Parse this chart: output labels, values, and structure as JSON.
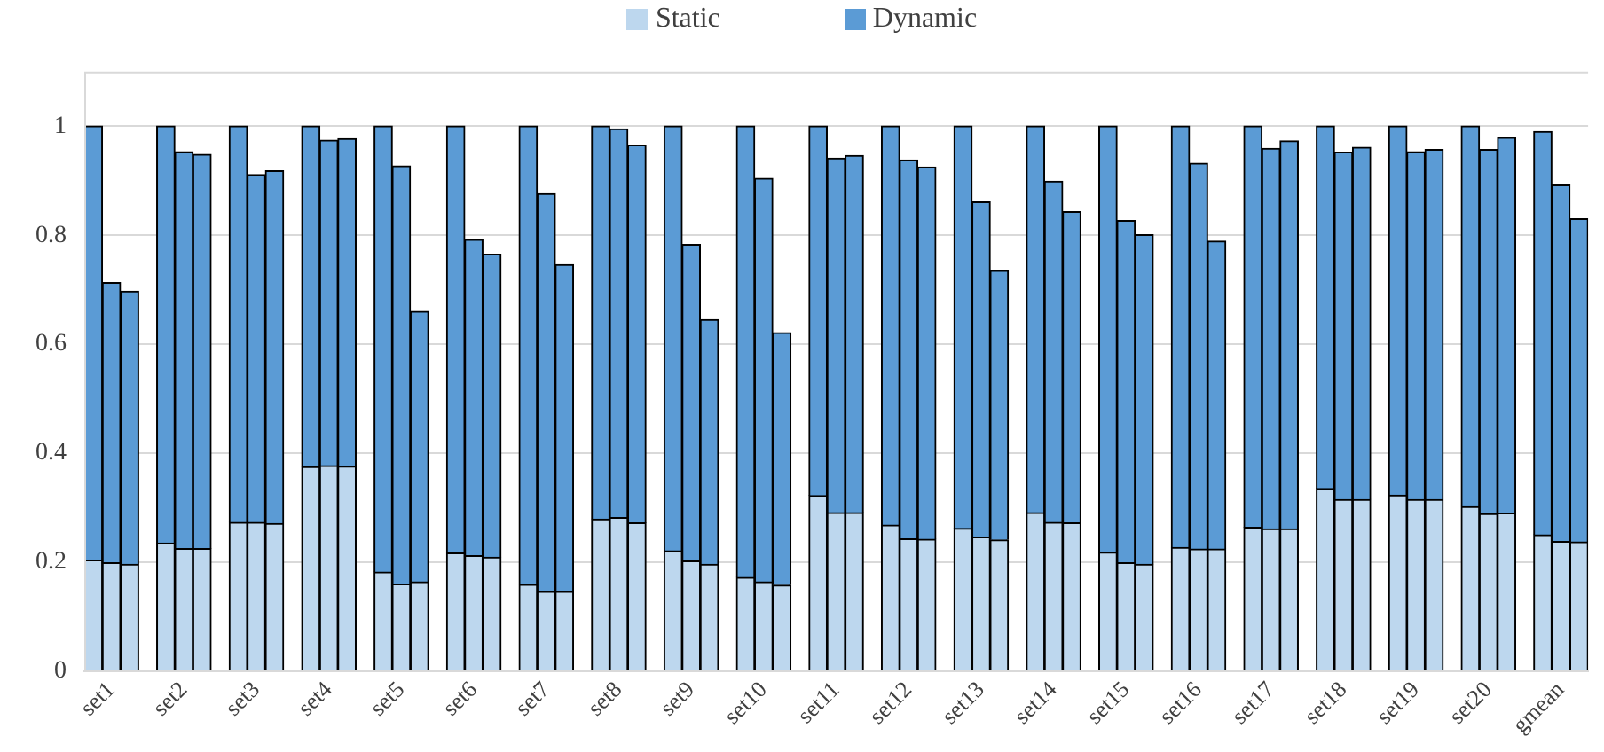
{
  "chart_data": {
    "type": "bar",
    "stacked": true,
    "legend": "top",
    "grid": "y",
    "ylim": [
      0,
      1.1
    ],
    "yticks": [
      0,
      0.2,
      0.4,
      0.6,
      0.8,
      1
    ],
    "categories": [
      null,
      "set1",
      null,
      null,
      null,
      "set2",
      null,
      null,
      null,
      "set3",
      null,
      null,
      null,
      "set4",
      null,
      null,
      null,
      "set5",
      null,
      null,
      null,
      "set6",
      null,
      null,
      null,
      "set7",
      null,
      null,
      null,
      "set8",
      null,
      null,
      null,
      "set9",
      null,
      null,
      null,
      "set10",
      null,
      null,
      null,
      "set11",
      null,
      null,
      null,
      "set12",
      null,
      null,
      null,
      "set13",
      null,
      null,
      null,
      "set14",
      null,
      null,
      null,
      "set15",
      null,
      null,
      null,
      "set16",
      null,
      null,
      null,
      "set17",
      null,
      null,
      null,
      "set18",
      null,
      null,
      null,
      "set19",
      null,
      null,
      null,
      "set20",
      null,
      null,
      null,
      "gmean",
      null
    ],
    "series": [
      {
        "name": "Static",
        "color": "#bdd7ee",
        "values": [
          0.204,
          0.199,
          0.196,
          null,
          0.235,
          0.225,
          0.225,
          null,
          0.273,
          0.273,
          0.271,
          null,
          0.375,
          0.377,
          0.376,
          null,
          0.182,
          0.16,
          0.164,
          null,
          0.217,
          0.212,
          0.209,
          null,
          0.159,
          0.146,
          0.146,
          null,
          0.279,
          0.282,
          0.272,
          null,
          0.221,
          0.202,
          0.196,
          null,
          0.172,
          0.164,
          0.158,
          null,
          0.322,
          0.291,
          0.291,
          null,
          0.268,
          0.243,
          0.242,
          null,
          0.262,
          0.246,
          0.241,
          null,
          0.291,
          0.273,
          0.272,
          null,
          0.218,
          0.199,
          0.196,
          null,
          0.227,
          0.224,
          0.224,
          null,
          0.264,
          0.261,
          0.261,
          null,
          0.335,
          0.315,
          0.315,
          null,
          0.323,
          0.315,
          0.315,
          null,
          0.302,
          0.289,
          0.29,
          null,
          0.25,
          0.238,
          0.237
        ]
      },
      {
        "name": "Dynamic",
        "color": "#5b9bd5",
        "values": [
          0.796,
          0.514,
          0.501,
          null,
          0.765,
          0.728,
          0.723,
          null,
          0.727,
          0.638,
          0.647,
          null,
          0.625,
          0.597,
          0.601,
          null,
          0.818,
          0.767,
          0.496,
          null,
          0.783,
          0.58,
          0.556,
          null,
          0.841,
          0.73,
          0.6,
          null,
          0.721,
          0.713,
          0.693,
          null,
          0.779,
          0.581,
          0.449,
          null,
          0.828,
          0.74,
          0.463,
          null,
          0.678,
          0.65,
          0.655,
          null,
          0.732,
          0.695,
          0.683,
          null,
          0.738,
          0.615,
          0.494,
          null,
          0.709,
          0.626,
          0.571,
          null,
          0.782,
          0.628,
          0.605,
          null,
          0.773,
          0.708,
          0.565,
          null,
          0.736,
          0.698,
          0.712,
          null,
          0.665,
          0.637,
          0.646,
          null,
          0.677,
          0.638,
          0.642,
          null,
          0.698,
          0.668,
          0.689,
          null,
          0.74,
          0.654,
          0.593
        ]
      }
    ]
  }
}
